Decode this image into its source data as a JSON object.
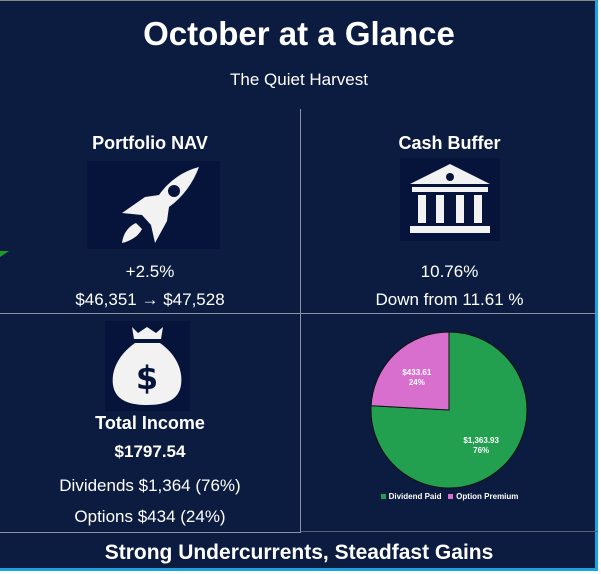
{
  "header": {
    "title": "October at a Glance",
    "subtitle": "The Quiet Harvest"
  },
  "nav": {
    "label": "Portfolio NAV",
    "icon": "rocket-icon",
    "change": "+2.5%",
    "range": "$46,351 → $47,528"
  },
  "cash": {
    "label": "Cash Buffer",
    "icon": "bank-icon",
    "value": "10.76%",
    "note": "Down from 11.61 %"
  },
  "income": {
    "label": "Total Income",
    "icon": "money-bag-icon",
    "total": "$1797.54",
    "dividends": "Dividends $1,364 (76%)",
    "options": "Options $434 (24%)"
  },
  "footer": {
    "tagline": "Strong Undercurrents, Steadfast Gains"
  },
  "chart_data": {
    "type": "pie",
    "categories": [
      "Dividend Paid",
      "Option Premium"
    ],
    "values": [
      1363.93,
      433.61
    ],
    "labels": [
      {
        "amount": "$1,363.93",
        "pct": "76%"
      },
      {
        "amount": "$433.61",
        "pct": "24%"
      }
    ],
    "colors": [
      "#22a050",
      "#d86fcf"
    ],
    "legend": "bottom"
  }
}
